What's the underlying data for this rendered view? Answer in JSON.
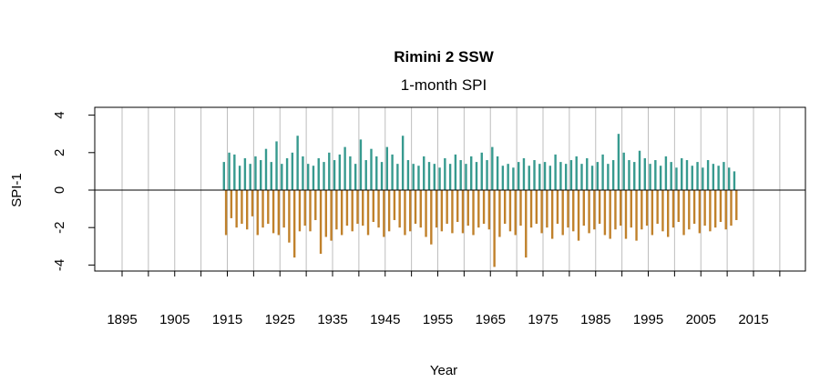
{
  "chart_data": {
    "type": "bar",
    "title": "Rimini 2 SSW",
    "subtitle": "1-month SPI",
    "xlabel": "Year",
    "ylabel": "SPI-1",
    "xlim": [
      1890,
      2025
    ],
    "ylim": [
      -4.4,
      4.4
    ],
    "x_tick_labels": [
      "1895",
      "1905",
      "1915",
      "1925",
      "1935",
      "1945",
      "1955",
      "1965",
      "1975",
      "1985",
      "1995",
      "2005",
      "2015"
    ],
    "y_tick_labels": [
      "-4",
      "-2",
      "0",
      "2",
      "4"
    ],
    "grid": "vertical lines every 5 years",
    "colors": {
      "positive": "#379A8F",
      "negative": "#C0812B",
      "grid": "#BEBEBE"
    },
    "years_start": 1914,
    "series": [
      {
        "values": [
          1.5,
          2.0,
          1.9,
          1.3,
          1.7,
          1.4,
          1.8,
          1.6,
          2.2,
          1.5,
          2.6,
          1.4,
          1.7,
          2.0,
          2.9,
          1.8,
          1.4,
          1.3,
          1.7,
          1.5,
          2.0,
          1.6,
          1.9,
          2.3,
          1.8,
          1.4,
          2.7,
          1.6,
          2.2,
          1.8,
          1.5,
          2.3,
          1.9,
          1.4,
          2.9,
          1.6,
          1.4,
          1.3,
          1.8,
          1.5,
          1.4,
          1.2,
          1.7,
          1.4,
          1.9,
          1.6,
          1.4,
          1.8,
          1.5,
          2.0,
          1.6,
          2.3,
          1.8,
          1.3,
          1.4,
          1.2,
          1.5,
          1.7,
          1.3,
          1.6,
          1.4,
          1.5,
          1.3,
          1.9,
          1.5,
          1.4,
          1.6,
          1.8,
          1.4,
          1.7,
          1.3,
          1.5,
          1.9,
          1.4,
          1.6,
          3.0,
          2.0,
          1.6,
          1.5,
          2.1,
          1.7,
          1.4,
          1.6,
          1.3,
          1.8,
          1.5,
          1.2,
          1.7,
          1.6,
          1.3,
          1.5,
          1.2,
          1.6,
          1.4,
          1.3,
          1.5,
          1.2,
          1.0
        ]
      },
      {
        "values": [
          -2.4,
          -1.5,
          -2.0,
          -1.8,
          -2.1,
          -1.4,
          -2.4,
          -2.0,
          -1.8,
          -2.3,
          -2.4,
          -2.0,
          -2.8,
          -3.6,
          -2.2,
          -1.9,
          -2.2,
          -1.6,
          -3.4,
          -2.5,
          -2.7,
          -2.1,
          -2.4,
          -1.9,
          -2.2,
          -1.8,
          -1.9,
          -2.4,
          -1.7,
          -2.0,
          -2.5,
          -2.2,
          -1.6,
          -2.0,
          -2.4,
          -2.2,
          -1.8,
          -2.0,
          -2.5,
          -2.9,
          -2.0,
          -2.2,
          -1.8,
          -2.3,
          -1.7,
          -2.3,
          -1.9,
          -2.4,
          -2.0,
          -1.8,
          -2.1,
          -4.1,
          -2.5,
          -1.8,
          -2.2,
          -2.4,
          -1.9,
          -3.6,
          -2.0,
          -1.8,
          -2.3,
          -2.0,
          -2.6,
          -1.8,
          -2.4,
          -2.0,
          -2.2,
          -2.7,
          -1.9,
          -2.3,
          -2.1,
          -1.8,
          -2.4,
          -2.6,
          -2.1,
          -1.9,
          -2.6,
          -2.0,
          -2.7,
          -2.1,
          -1.9,
          -2.4,
          -1.8,
          -2.2,
          -2.5,
          -2.0,
          -1.7,
          -2.4,
          -2.1,
          -1.8,
          -2.3,
          -1.9,
          -2.2,
          -2.0,
          -1.7,
          -2.1,
          -1.9,
          -1.6
        ]
      }
    ]
  }
}
